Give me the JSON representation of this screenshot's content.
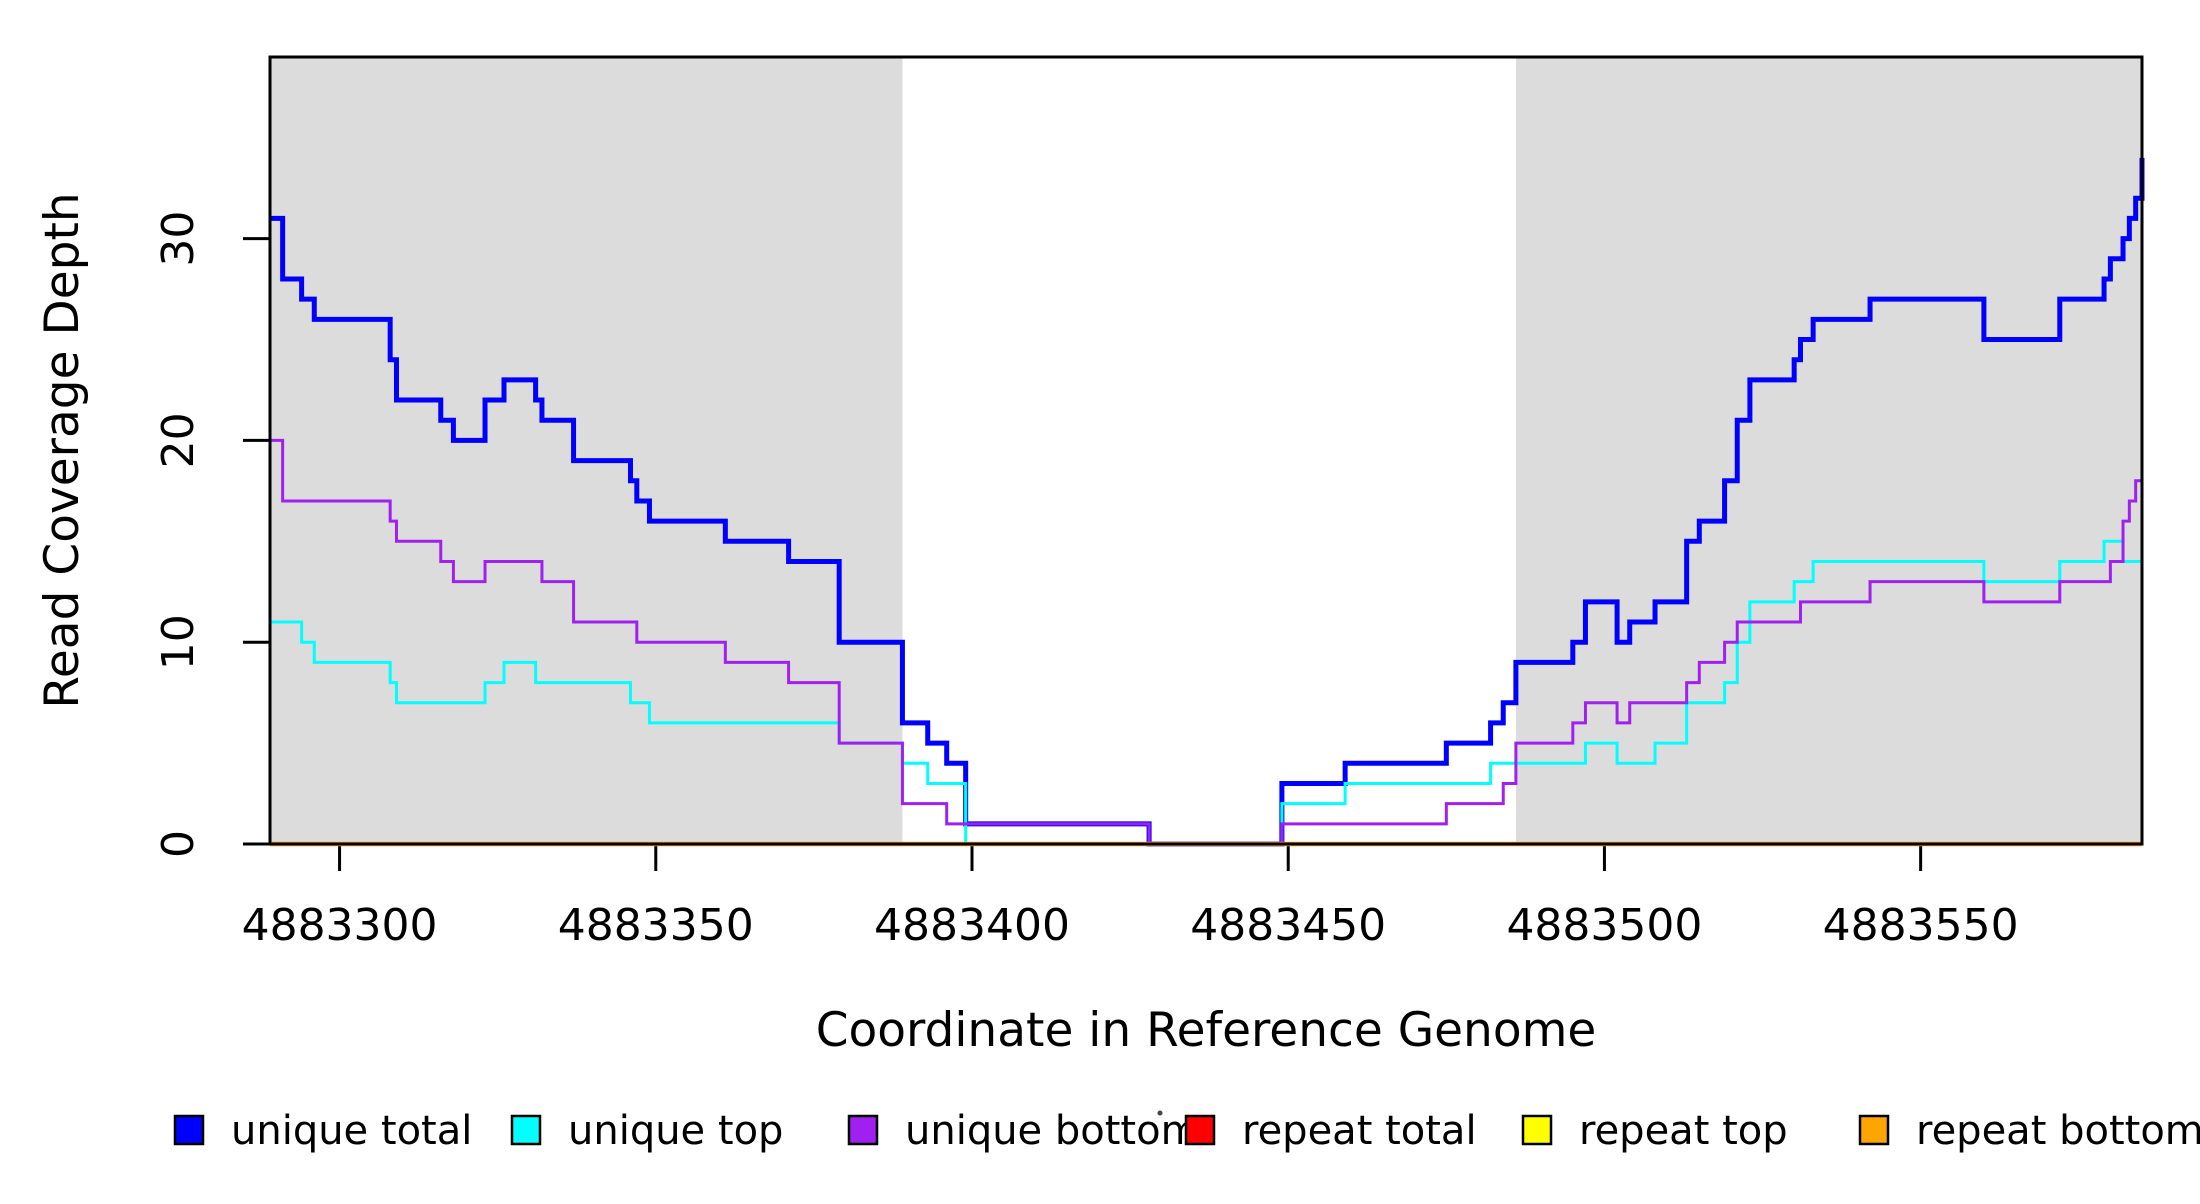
{
  "chart_data": {
    "type": "line",
    "subtype": "step",
    "title": "",
    "xlabel": "Coordinate in Reference Genome",
    "ylabel": "Read Coverage Depth",
    "xlim": [
      4883289,
      4883585
    ],
    "ylim": [
      0,
      39
    ],
    "x_ticks": [
      4883300,
      4883350,
      4883400,
      4883450,
      4883500,
      4883550
    ],
    "x_tick_labels": [
      "4883300",
      "4883350",
      "4883400",
      "4883450",
      "4883500",
      "4883550"
    ],
    "y_ticks": [
      0,
      10,
      20,
      30
    ],
    "y_tick_labels": [
      "0",
      "10",
      "20",
      "30"
    ],
    "grid": false,
    "background_color": "#ffffff",
    "shaded_region_color": "#DCDCDC",
    "shaded_regions": [
      {
        "x0": 4883289,
        "x1": 4883389
      },
      {
        "x0": 4883486,
        "x1": 4883585
      }
    ],
    "legend": {
      "position": "bottom",
      "entries": [
        {
          "label": "unique total",
          "color": "#0000FF"
        },
        {
          "label": "unique top",
          "color": "#00FFFF"
        },
        {
          "label": "unique bottom",
          "color": "#A020F0"
        },
        {
          "label": "repeat total",
          "color": "#FF0000"
        },
        {
          "label": "repeat top",
          "color": "#FFFF00"
        },
        {
          "label": "repeat bottom",
          "color": "#FFA500"
        }
      ]
    },
    "series": [
      {
        "name": "unique total",
        "color": "#0000FF",
        "line_width": 5,
        "points": [
          [
            4883289,
            31
          ],
          [
            4883291,
            28
          ],
          [
            4883294,
            27
          ],
          [
            4883296,
            26
          ],
          [
            4883308,
            24
          ],
          [
            4883309,
            22
          ],
          [
            4883316,
            21
          ],
          [
            4883318,
            20
          ],
          [
            4883323,
            22
          ],
          [
            4883326,
            23
          ],
          [
            4883331,
            22
          ],
          [
            4883332,
            21
          ],
          [
            4883337,
            19
          ],
          [
            4883346,
            18
          ],
          [
            4883347,
            17
          ],
          [
            4883349,
            16
          ],
          [
            4883361,
            15
          ],
          [
            4883371,
            14
          ],
          [
            4883379,
            10
          ],
          [
            4883389,
            6
          ],
          [
            4883393,
            5
          ],
          [
            4883396,
            4
          ],
          [
            4883399,
            1
          ],
          [
            4883428,
            0
          ],
          [
            4883449,
            3
          ],
          [
            4883459,
            4
          ],
          [
            4883475,
            5
          ],
          [
            4883482,
            6
          ],
          [
            4883484,
            7
          ],
          [
            4883486,
            9
          ],
          [
            4883495,
            10
          ],
          [
            4883497,
            12
          ],
          [
            4883502,
            10
          ],
          [
            4883504,
            11
          ],
          [
            4883508,
            12
          ],
          [
            4883513,
            15
          ],
          [
            4883515,
            16
          ],
          [
            4883519,
            18
          ],
          [
            4883521,
            21
          ],
          [
            4883523,
            23
          ],
          [
            4883530,
            24
          ],
          [
            4883531,
            25
          ],
          [
            4883533,
            26
          ],
          [
            4883542,
            27
          ],
          [
            4883560,
            25
          ],
          [
            4883572,
            27
          ],
          [
            4883579,
            28
          ],
          [
            4883580,
            29
          ],
          [
            4883582,
            30
          ],
          [
            4883583,
            31
          ],
          [
            4883584,
            32
          ],
          [
            4883585,
            34
          ]
        ]
      },
      {
        "name": "unique top",
        "color": "#00FFFF",
        "line_width": 3,
        "points": [
          [
            4883289,
            11
          ],
          [
            4883294,
            10
          ],
          [
            4883296,
            9
          ],
          [
            4883308,
            8
          ],
          [
            4883309,
            7
          ],
          [
            4883323,
            8
          ],
          [
            4883326,
            9
          ],
          [
            4883331,
            8
          ],
          [
            4883346,
            7
          ],
          [
            4883349,
            6
          ],
          [
            4883379,
            5
          ],
          [
            4883389,
            4
          ],
          [
            4883393,
            3
          ],
          [
            4883399,
            0
          ],
          [
            4883449,
            2
          ],
          [
            4883459,
            3
          ],
          [
            4883482,
            4
          ],
          [
            4883497,
            5
          ],
          [
            4883502,
            4
          ],
          [
            4883508,
            5
          ],
          [
            4883513,
            7
          ],
          [
            4883519,
            8
          ],
          [
            4883521,
            10
          ],
          [
            4883523,
            12
          ],
          [
            4883530,
            13
          ],
          [
            4883533,
            14
          ],
          [
            4883560,
            13
          ],
          [
            4883572,
            14
          ],
          [
            4883579,
            15
          ],
          [
            4883582,
            14
          ],
          [
            4883585,
            16
          ]
        ]
      },
      {
        "name": "unique bottom",
        "color": "#A020F0",
        "line_width": 3,
        "points": [
          [
            4883289,
            20
          ],
          [
            4883291,
            17
          ],
          [
            4883308,
            16
          ],
          [
            4883309,
            15
          ],
          [
            4883316,
            14
          ],
          [
            4883318,
            13
          ],
          [
            4883323,
            14
          ],
          [
            4883332,
            13
          ],
          [
            4883337,
            11
          ],
          [
            4883347,
            10
          ],
          [
            4883361,
            9
          ],
          [
            4883371,
            8
          ],
          [
            4883379,
            5
          ],
          [
            4883389,
            2
          ],
          [
            4883396,
            1
          ],
          [
            4883428,
            0
          ],
          [
            4883449,
            1
          ],
          [
            4883475,
            2
          ],
          [
            4883484,
            3
          ],
          [
            4883486,
            5
          ],
          [
            4883495,
            6
          ],
          [
            4883497,
            7
          ],
          [
            4883502,
            6
          ],
          [
            4883504,
            7
          ],
          [
            4883513,
            8
          ],
          [
            4883515,
            9
          ],
          [
            4883519,
            10
          ],
          [
            4883521,
            11
          ],
          [
            4883531,
            12
          ],
          [
            4883542,
            13
          ],
          [
            4883560,
            12
          ],
          [
            4883572,
            13
          ],
          [
            4883580,
            14
          ],
          [
            4883582,
            16
          ],
          [
            4883583,
            17
          ],
          [
            4883584,
            18
          ]
        ]
      },
      {
        "name": "repeat total",
        "color": "#FF0000",
        "line_width": 3,
        "points": [
          [
            4883289,
            0
          ]
        ]
      },
      {
        "name": "repeat top",
        "color": "#FFFF00",
        "line_width": 3,
        "points": [
          [
            4883289,
            0
          ]
        ]
      },
      {
        "name": "repeat bottom",
        "color": "#FFA500",
        "line_width": 4.5,
        "points": [
          [
            4883289,
            0
          ]
        ]
      }
    ]
  }
}
